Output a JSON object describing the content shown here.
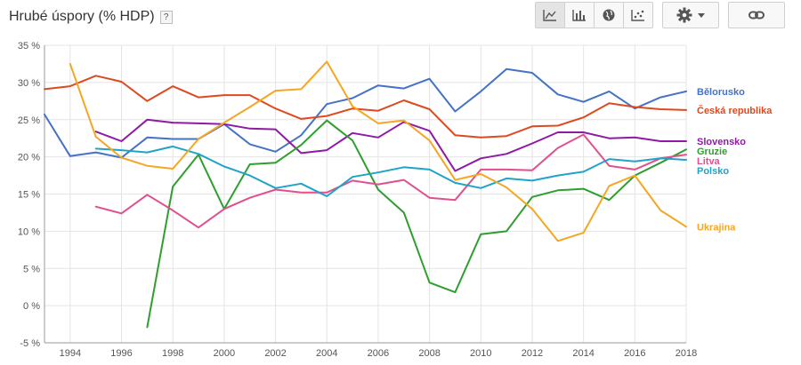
{
  "header": {
    "title": "Hrubé úspory (% HDP)",
    "help_label": "?"
  },
  "toolbar": {
    "icons": [
      "line-chart-icon",
      "bar-chart-icon",
      "globe-icon",
      "scatter-chart-icon",
      "gear-icon",
      "chevron-down-icon",
      "link-icon"
    ],
    "active": "line-chart-icon"
  },
  "colors": {
    "Bělorusko": "#4472c4",
    "Česká republika": "#dc4a1f",
    "Slovensko": "#8e1aa6",
    "Gruzie": "#2e9e2e",
    "Litva": "#e0508f",
    "Polsko": "#1fa3c8",
    "Ukrajina": "#f5a623"
  },
  "chart_data": {
    "type": "line",
    "ylim": [
      -5,
      35
    ],
    "xlim": [
      1993,
      2018
    ],
    "y_ticks": [
      {
        "v": 35,
        "label": "35 %"
      },
      {
        "v": 30,
        "label": "30 %"
      },
      {
        "v": 25,
        "label": "25 %"
      },
      {
        "v": 20,
        "label": "20 %"
      },
      {
        "v": 15,
        "label": "15 %"
      },
      {
        "v": 10,
        "label": "10 %"
      },
      {
        "v": 5,
        "label": "5 %"
      },
      {
        "v": 0,
        "label": "0 %"
      },
      {
        "v": -5,
        "label": "-5 %"
      }
    ],
    "x_ticks": [
      "1994",
      "1996",
      "1998",
      "2000",
      "2002",
      "2004",
      "2006",
      "2008",
      "2010",
      "2012",
      "2014",
      "2016",
      "2018"
    ],
    "grid": true,
    "legend": "right-end labels",
    "series": [
      {
        "name": "Bělorusko",
        "x": [
          1993,
          1994,
          1995,
          1996,
          1997,
          1998,
          1999,
          2000,
          2001,
          2002,
          2003,
          2004,
          2005,
          2006,
          2007,
          2008,
          2009,
          2010,
          2011,
          2012,
          2013,
          2014,
          2015,
          2016,
          2017,
          2018
        ],
        "y": [
          25.7,
          20.1,
          20.6,
          19.9,
          22.6,
          22.4,
          22.4,
          24.4,
          21.7,
          20.7,
          22.9,
          27.1,
          27.9,
          29.6,
          29.2,
          30.5,
          26.1,
          28.8,
          31.8,
          31.3,
          28.4,
          27.4,
          28.8,
          26.5,
          28.0,
          28.8
        ]
      },
      {
        "name": "Česká republika",
        "x": [
          1993,
          1994,
          1995,
          1996,
          1997,
          1998,
          1999,
          2000,
          2001,
          2002,
          2003,
          2004,
          2005,
          2006,
          2007,
          2008,
          2009,
          2010,
          2011,
          2012,
          2013,
          2014,
          2015,
          2016,
          2017,
          2018
        ],
        "y": [
          29.1,
          29.5,
          30.9,
          30.1,
          27.5,
          29.5,
          28.0,
          28.3,
          28.3,
          26.5,
          25.1,
          25.5,
          26.5,
          26.2,
          27.6,
          26.4,
          22.9,
          22.6,
          22.8,
          24.1,
          24.2,
          25.3,
          27.2,
          26.7,
          26.4,
          26.3
        ]
      },
      {
        "name": "Slovensko",
        "x": [
          1995,
          1996,
          1997,
          1998,
          1999,
          2000,
          2001,
          2002,
          2003,
          2004,
          2005,
          2006,
          2007,
          2008,
          2009,
          2010,
          2011,
          2012,
          2013,
          2014,
          2015,
          2016,
          2017,
          2018
        ],
        "y": [
          23.4,
          22.1,
          25.0,
          24.6,
          24.5,
          24.4,
          23.8,
          23.7,
          20.5,
          20.9,
          23.2,
          22.6,
          24.7,
          23.5,
          18.1,
          19.8,
          20.4,
          21.8,
          23.3,
          23.3,
          22.5,
          22.6,
          22.1,
          22.1
        ]
      },
      {
        "name": "Gruzie",
        "x": [
          1997,
          1998,
          1999,
          2000,
          2001,
          2002,
          2003,
          2004,
          2005,
          2006,
          2007,
          2008,
          2009,
          2010,
          2011,
          2012,
          2013,
          2014,
          2015,
          2016,
          2017,
          2018
        ],
        "y": [
          -2.9,
          16.0,
          20.3,
          13.0,
          19.0,
          19.2,
          21.6,
          24.9,
          22.2,
          15.6,
          12.5,
          3.1,
          1.8,
          9.6,
          10.0,
          14.6,
          15.5,
          15.7,
          14.2,
          17.5,
          19.2,
          21.0
        ]
      },
      {
        "name": "Litva",
        "x": [
          1995,
          1996,
          1997,
          1998,
          1999,
          2000,
          2001,
          2002,
          2003,
          2004,
          2005,
          2006,
          2007,
          2008,
          2009,
          2010,
          2011,
          2012,
          2013,
          2014,
          2015,
          2016,
          2017,
          2018
        ],
        "y": [
          13.3,
          12.4,
          14.9,
          12.8,
          10.5,
          13.0,
          14.5,
          15.6,
          15.2,
          15.2,
          16.8,
          16.3,
          16.9,
          14.5,
          14.2,
          18.3,
          18.3,
          18.2,
          21.2,
          23.0,
          18.8,
          18.3,
          19.8,
          20.3
        ]
      },
      {
        "name": "Polsko",
        "x": [
          1995,
          1996,
          1997,
          1998,
          1999,
          2000,
          2001,
          2002,
          2003,
          2004,
          2005,
          2006,
          2007,
          2008,
          2009,
          2010,
          2011,
          2012,
          2013,
          2014,
          2015,
          2016,
          2017,
          2018
        ],
        "y": [
          21.1,
          20.9,
          20.6,
          21.4,
          20.4,
          18.7,
          17.5,
          15.8,
          16.4,
          14.7,
          17.3,
          17.9,
          18.6,
          18.3,
          16.5,
          15.8,
          17.1,
          16.8,
          17.5,
          18.0,
          19.7,
          19.4,
          19.8,
          19.6
        ]
      },
      {
        "name": "Ukrajina",
        "x": [
          1994,
          1995,
          1996,
          1997,
          1998,
          1999,
          2000,
          2001,
          2002,
          2003,
          2004,
          2005,
          2006,
          2007,
          2008,
          2009,
          2010,
          2011,
          2012,
          2013,
          2014,
          2015,
          2016,
          2017,
          2018
        ],
        "y": [
          32.5,
          22.7,
          19.9,
          18.8,
          18.4,
          22.4,
          24.6,
          26.7,
          28.9,
          29.1,
          32.8,
          26.8,
          24.5,
          24.9,
          22.2,
          16.9,
          17.7,
          15.9,
          13.0,
          8.7,
          9.8,
          16.1,
          17.5,
          12.8,
          10.6
        ]
      }
    ]
  }
}
